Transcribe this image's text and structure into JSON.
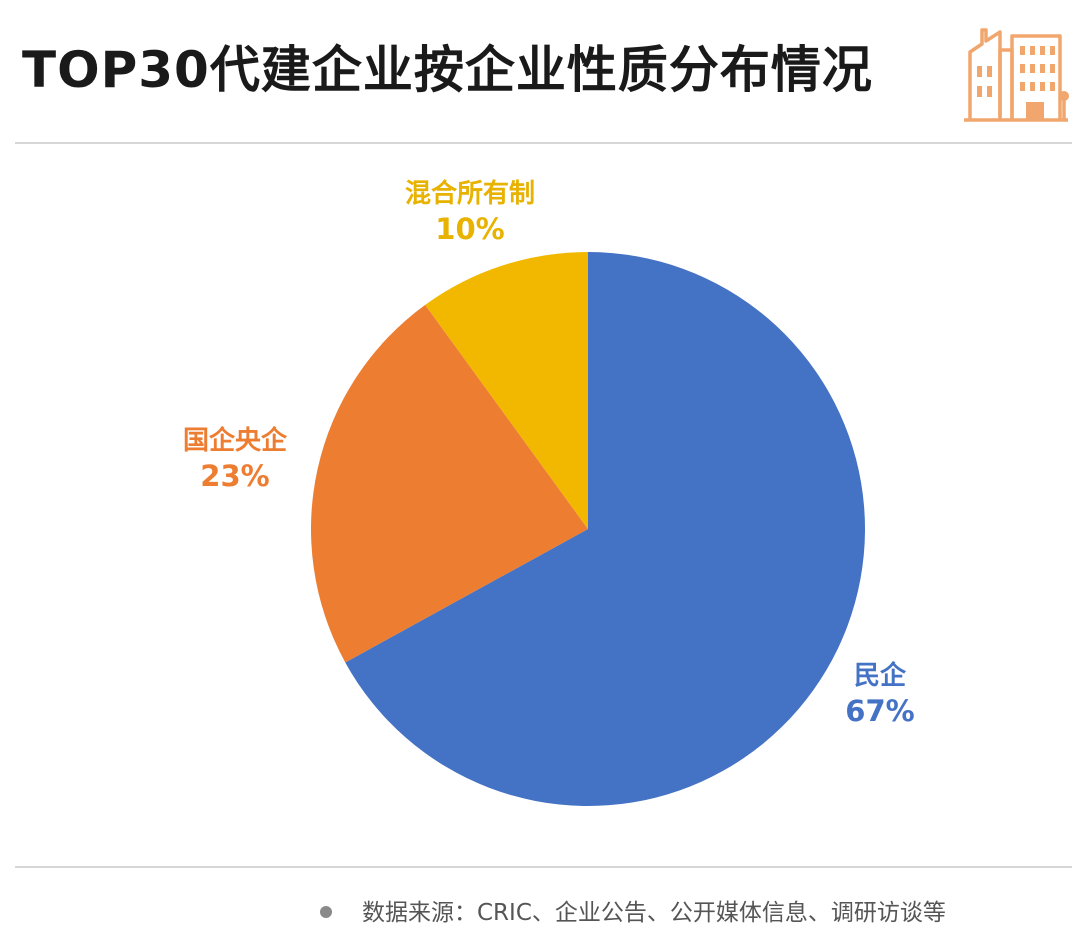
{
  "title": "TOP30代建企业按企业性质分布情况",
  "logo_icon": "city-buildings-icon",
  "colors": {
    "series": [
      "#4472c4",
      "#ed7d31",
      "#f2b800"
    ],
    "logo": "#f0a66c",
    "rule": "#d6d6d6"
  },
  "chart_data": {
    "type": "pie",
    "title": "TOP30代建企业按企业性质分布情况",
    "start_angle": "12 o'clock",
    "direction": "clockwise",
    "slices": [
      {
        "label": "民企",
        "value": 67,
        "display": "67%",
        "color": "#4472c4"
      },
      {
        "label": "国企央企",
        "value": 23,
        "display": "23%",
        "color": "#ed7d31"
      },
      {
        "label": "混合所有制",
        "value": 10,
        "display": "10%",
        "color": "#f2b800"
      }
    ]
  },
  "source": "数据来源：CRIC、企业公告、公开媒体信息、调研访谈等"
}
